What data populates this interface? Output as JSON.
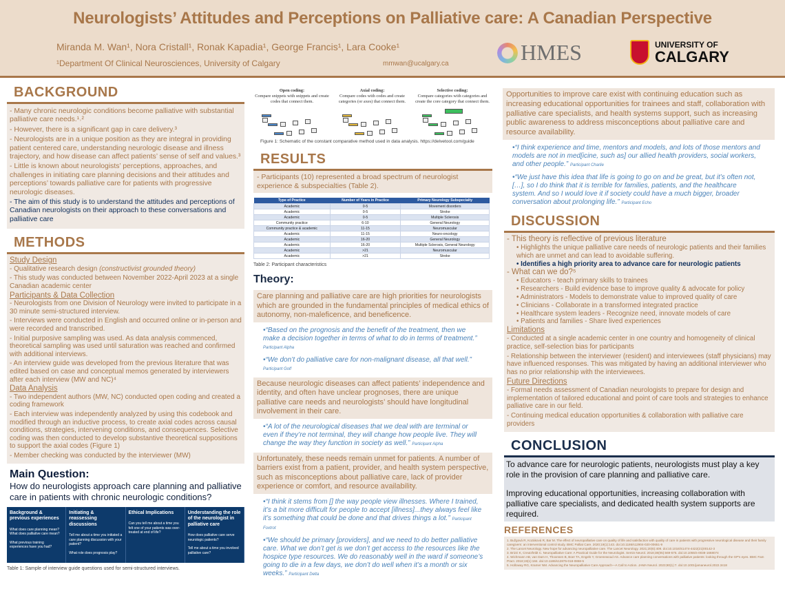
{
  "header": {
    "title": "Neurologists’ Attitudes and Perceptions on Palliative care: A Canadian Perspective",
    "authors": "Miranda M. Wan¹, Nora Cristall¹, Ronak Kapadia¹, George Francis¹, Lara Cooke¹",
    "affiliation": "¹Department Of Clinical Neurosciences, University of Calgary",
    "email": "mmwan@ucalgary.ca",
    "logo1": "HMES",
    "logo2_line1": "UNIVERSITY OF",
    "logo2_line2": "CALGARY"
  },
  "background": {
    "heading": "BACKGROUND",
    "items": [
      "- Many chronic neurologic conditions become palliative with substantial palliative care needs.¹˒²",
      "- However, there is a significant gap in care delivery.³",
      "- Neurologists are in a unique position as they are integral in providing patient centered care, understanding neurologic disease and illness trajectory, and how disease can affect patients’ sense of self and values.³",
      "- Little is known about neurologists’ perceptions, approaches, and challenges in initiating care planning decisions and their attitudes and perceptions’ towards palliative care for patients with progressive neurologic diseases."
    ],
    "aim": "- The aim of this study is to understand the attitudes and perceptions of Canadian neurologists on their approach to these conversations and palliative care"
  },
  "methods": {
    "heading": "METHODS",
    "study_design": "Study Design",
    "sd1_a": "- Qualitative research design ",
    "sd1_b": "(constructivist grounded theory)",
    "sd2": "- This study was conducted between November 2022-April 2023 at a single Canadian academic center",
    "participants": "Participants & Data Collection",
    "p_items": [
      "- Neurologists from one Division of Neurology were invited to participate in a 30 minute semi-structured interview.",
      "- Interviews were conducted in English and occurred online or in-person and were recorded and transcribed.",
      "- Initial purposive sampling was used. As data analysis commenced, theoretical sampling was used until saturation was reached and confirmed with additional interviews.",
      "- An interview guide was developed from the previous literature that was edited based on case and conceptual memos generated by interviewers after each interview (MW and NC)⁴"
    ],
    "analysis": "Data Analysis",
    "a_items": [
      "- Two independent authors (MW, NC) conducted open coding and created a coding framework",
      "- Each interview was independently analyzed by using this codebook and modified through an inductive process, to create axial codes across causal conditions, strategies, intervening conditions, and consequences. Selective coding was then conducted to develop substantive theoretical suppositions to support the axial codes (Figure 1)",
      "- Member checking was conducted by the interviewer (MW)"
    ]
  },
  "main_question": {
    "heading": "Main Question:",
    "text": "How do neurologists approach care planning and palliative care in patients with chronic neurologic conditions?"
  },
  "table1": {
    "columns": [
      {
        "title": "Background & previous experiences",
        "questions": [
          "What does care planning mean? What does palliative care mean?",
          "What previous training experiences have you had?"
        ]
      },
      {
        "title": "Initiating & reassessing discussions",
        "questions": [
          "Tell me about a time you initiated a care planning discussion with your patient?",
          "What role does prognosis play?"
        ]
      },
      {
        "title": "Ethical Implications",
        "questions": [
          "Can you tell me about a time you felt one of your patients was over-treated at end of life?"
        ]
      },
      {
        "title": "Understanding the role of the neurologist in palliative care",
        "questions": [
          "How does palliative care serve neurologic patients?",
          "Tell me about a time you involved palliative care?"
        ]
      }
    ],
    "caption": "Table 1: Sample of interview guide questions used for semi-structured interviews."
  },
  "figure1": {
    "panels": [
      {
        "title": "Open coding:",
        "text": "Compare snippets with snippets and create codes that connect them."
      },
      {
        "title": "Axial coding:",
        "text": "Compare codes with codes and create categories (or axes) that connect them."
      },
      {
        "title": "Selective coding:",
        "text": "Compare categories with categories and create the core category that connect them."
      }
    ],
    "caption": "Figure 1: Schematic of the constant comparative method used in data analysis. https://delvetool.com/guide"
  },
  "results": {
    "heading": "RESULTS",
    "text": "- Participants (10) represented a broad spectrum of neurologist experience & subspecialties (Table 2)."
  },
  "table2": {
    "headers": [
      "Type of Practice",
      "Number of Years in Practice",
      "Primary Neurology Subspecialty"
    ],
    "rows": [
      [
        "Academic",
        "0-5",
        "Movement disorders"
      ],
      [
        "Academic",
        "0-5",
        "Stroke"
      ],
      [
        "Academic",
        "0-5",
        "Multiple Sclerosis"
      ],
      [
        "Community practice",
        "6-10",
        "General Neurology"
      ],
      [
        "Community practice & academic",
        "11-15",
        "Neuromuscular"
      ],
      [
        "Academic",
        "11-15",
        "Neuro-oncology"
      ],
      [
        "Academic",
        "16-20",
        "General Neurology"
      ],
      [
        "Academic",
        "16-20",
        "Multiple Sclerosis, General Neurology"
      ],
      [
        "Academic",
        ">21",
        "Neuromuscular"
      ],
      [
        "Academic",
        ">21",
        "Stroke"
      ]
    ],
    "caption": "Table 2: Participant characteristics"
  },
  "theory": {
    "heading": "Theory:",
    "blocks": [
      {
        "text": "Care planning and palliative care are high priorities for neurologists which are grounded in the fundamental principles of medical ethics of autonomy, non-maleficence, and beneficence.",
        "quotes": [
          {
            "q": "“Based on the prognosis and the benefit of the treatment, then we make a decision together in terms of what to do in terms of treatment.”",
            "who": "Participant Alpha"
          },
          {
            "q": "“We don’t do palliative care for non-malignant disease, all that well.”",
            "who": "Participant Golf"
          }
        ]
      },
      {
        "text": "Because neurologic diseases can affect patients’ independence and identity, and often have unclear prognoses, there are unique palliative care needs and neurologists’ should have longitudinal involvement in their care.",
        "quotes": [
          {
            "q": "“A lot of the neurological diseases that we deal with are terminal or even if they’re not terminal, they will change how people live. They will change the way they function in society as well.”",
            "who": "Participant Alpha"
          }
        ]
      },
      {
        "text": "Unfortunately, these needs remain unmet for patients. A number of barriers exist from a patient, provider, and health system perspective, such as misconceptions about palliative care, lack of provider experience or comfort, and resource availability.",
        "quotes": [
          {
            "q": "“I think it stems from [] the way people view illnesses. Where I trained, it’s a bit more difficult for people to accept [illness]...they always feel like it’s something that could be done and that drives things a lot.”",
            "who": "Participant Foxtrot"
          },
          {
            "q": "“We should be primary [providers], and we need to do better palliative care. What we don’t get is we don’t get access to the resources like the hospice type resources. We do reasonably well in the ward if someone’s going to die in a few days, we don’t do well when it’s a month or six weeks.”",
            "who": "Participant Delta"
          }
        ]
      },
      {
        "text": "Opportunities to improve care exist with continuing education such as increasing educational opportunities for trainees and staff, collaboration with palliative care specialists, and health systems support, such as increasing public awareness to address misconceptions about palliative care and resource availability.",
        "quotes": [
          {
            "q": "“I think experience and time, mentors and models, and lots of those mentors and models are not in med[icine, such as] our allied health providers, social workers, and other people.”",
            "who": "Participant Charlie"
          },
          {
            "q": "“We just have this idea that life is going to go on and be great, but it’s often not, […], so I do think that it is terrible for families, patients, and the healthcare system. And so I would love it if society could have a much bigger, broader conversation about prolonging life.”",
            "who": "Participant Echo"
          }
        ]
      }
    ]
  },
  "discussion": {
    "heading": "DISCUSSION",
    "p1": "- This theory is reflective of previous literature",
    "p1_items": [
      "Highlights the unique palliative care needs of neurologic patients and their families which are unmet and can lead to avoidable suffering."
    ],
    "p1_bold": "Identifies a high priority area to advance care for neurologic patients",
    "p2": "- What can we do?⁵",
    "p2_items": [
      "Educators - teach primary skills to trainees",
      "Researchers - Build evidence base to improve quality & advocate for policy",
      "Administrators - Models to demonstrate value to improved quality of care",
      "Clinicians - Collaborate in a transformed integrated practice",
      "Healthcare system leaders - Recognize need, innovate models of care",
      "Patients and families - Share lived experiences"
    ],
    "limitations": "Limitations",
    "l_items": [
      "- Conducted at a single academic center in one country and homogeneity of clinical practice, self-selection bias for participants",
      "- Relationship between the interviewer (resident) and interviewees (staff physicians) may have influenced responses. This was mitigated by having an additional interviewer who has no prior relationship with the interviewees."
    ],
    "future": "Future Directions",
    "f_items": [
      "- Formal needs assessment of Canadian neurologists to prepare for design and implementation of tailored educational and point of care tools and strategies to enhance palliative care in our field.",
      "- Continuing medical education opportunities & collaboration with palliative care providers"
    ]
  },
  "conclusion": {
    "heading": "CONCLUSION",
    "p1": "To advance care for neurologic patients, neurologists must play a key role in the provision of care planning and palliative care.",
    "p2": "Improving educational opportunities, increasing collaboration with palliative care specialists, and dedicated health system supports are required."
  },
  "references": {
    "heading": "REFERENCES",
    "items": [
      "1. Bužgová R, Kozáková R, Bar M. The effect of neuropalliative care on quality of life and satisfaction with quality of care in patients with progressive neurological disease and their family caregivers: an interventional control study. BMC Palliat Care. 2020;19(1):143. doi:10.1186/s12904-020-00651-9",
      "2. The Lancet Neurology. New hope for advancing neuropalliative care. The Lancet Neurology. 2021;20(6):409. doi:10.1016/S1474-4422(21)00142-3",
      "3. Brizzi K, Creutzfeldt C. Neuropalliative Care: A Practical Guide for the Neurologist. Semin Neurol. 2018;38(05):569-575. doi:10.1055/s-0038-1668074",
      "4. Wichmann AB, van Dam H, Thoonsen B, Boer TA, Engels Y, Groenewoud AS. Advance care planning conversations with palliative patients: looking through the GP's eyes. BMC Fam Pract. 2018;19(1):184. doi:10.1186/s12875-018-0868-5",
      "5. Holloway RG, Kramer NM. Advancing the Neuropalliative Care Approach—A Call to Action. JAMA Neurol. 2023;80(1):7. doi:10.1001/jamaneurol.2022.3418"
    ]
  },
  "colors": {
    "brown": "#a8774a",
    "navy": "#0d3a6b",
    "quote_blue": "#4a82b8",
    "header_bg": "#ecdccb"
  }
}
